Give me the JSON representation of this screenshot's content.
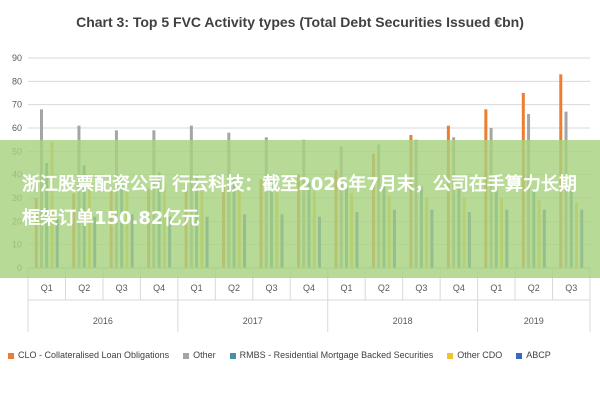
{
  "chart_data": {
    "type": "bar",
    "title": "Chart 3: Top 5 FVC Activity types (Total Debt Securities Issued €bn)",
    "ylim": [
      0,
      90
    ],
    "yticks": [
      0,
      10,
      20,
      30,
      40,
      50,
      60,
      70,
      80,
      90
    ],
    "grid": true,
    "legend_position": "bottom",
    "categories": [
      "Q1",
      "Q2",
      "Q3",
      "Q4",
      "Q1",
      "Q2",
      "Q3",
      "Q4",
      "Q1",
      "Q2",
      "Q3",
      "Q4",
      "Q1",
      "Q2",
      "Q3"
    ],
    "years": [
      {
        "label": "2016",
        "start": 0,
        "end": 3
      },
      {
        "label": "2017",
        "start": 4,
        "end": 7
      },
      {
        "label": "2018",
        "start": 8,
        "end": 11
      },
      {
        "label": "2019",
        "start": 12,
        "end": 14
      }
    ],
    "series": [
      {
        "name": "CLO - Collateralised Loan Obligations",
        "color": "#ED7D31",
        "values": [
          30,
          32,
          33,
          34,
          35,
          36,
          38,
          40,
          42,
          49,
          57,
          61,
          68,
          75,
          83
        ]
      },
      {
        "name": "Other",
        "color": "#A5A5A5",
        "values": [
          68,
          61,
          59,
          59,
          61,
          58,
          56,
          55,
          52,
          53,
          55,
          56,
          60,
          66,
          67
        ]
      },
      {
        "name": "RMBS - Residential Mortgage Backed Securities",
        "color": "#4A8FA8",
        "values": [
          45,
          44,
          40,
          41,
          40,
          39,
          38,
          37,
          36,
          35,
          35,
          34,
          34,
          33,
          33
        ]
      },
      {
        "name": "Other CDO",
        "color": "#F2C230",
        "values": [
          54,
          40,
          36,
          35,
          34,
          34,
          33,
          33,
          32,
          31,
          30,
          30,
          30,
          29,
          28
        ]
      },
      {
        "name": "ABCP",
        "color": "#3867C8",
        "values": [
          21,
          22,
          23,
          22,
          22,
          23,
          23,
          22,
          24,
          25,
          25,
          24,
          25,
          25,
          25
        ]
      }
    ]
  },
  "overlay": {
    "headline": "浙江股票配资公司 行云科技：截至2026年7月末，公司在手算力长期框架订单150.82亿元"
  }
}
